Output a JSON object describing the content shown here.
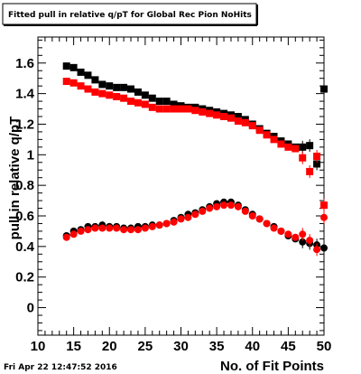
{
  "chart_data": {
    "type": "scatter",
    "title": "Fitted pull in relative q/pT  for Global Rec Pion NoHits",
    "xlabel": "No. of Fit Points",
    "ylabel": "pull in relative q/pT",
    "timestamp": "Fri Apr 22 12:47:52 2016",
    "xlim": [
      10,
      50
    ],
    "ylim": [
      -0.18,
      1.77
    ],
    "xticks": [
      10,
      15,
      20,
      25,
      30,
      35,
      40,
      45,
      50
    ],
    "yticks": [
      0,
      0.2,
      0.4,
      0.6,
      0.8,
      1,
      1.2,
      1.4,
      1.6
    ],
    "ytick_labels": [
      "0",
      "0.2",
      "0.4",
      "0.6",
      "0.8",
      "1",
      "1.2",
      "1.4",
      "1.6"
    ],
    "grid": false,
    "series": [
      {
        "marker": "square",
        "color": "#000000",
        "x": [
          14,
          15,
          16,
          17,
          18,
          19,
          20,
          21,
          22,
          23,
          24,
          25,
          26,
          27,
          28,
          29,
          30,
          31,
          32,
          33,
          34,
          35,
          36,
          37,
          38,
          39,
          40,
          41,
          42,
          43,
          44,
          45,
          46,
          47,
          48,
          49,
          50
        ],
        "y": [
          1.58,
          1.57,
          1.54,
          1.52,
          1.49,
          1.46,
          1.45,
          1.44,
          1.44,
          1.43,
          1.41,
          1.39,
          1.37,
          1.35,
          1.35,
          1.33,
          1.32,
          1.31,
          1.31,
          1.3,
          1.29,
          1.28,
          1.27,
          1.26,
          1.25,
          1.23,
          1.2,
          1.17,
          1.14,
          1.12,
          1.09,
          1.07,
          1.05,
          1.05,
          1.06,
          0.94,
          1.43
        ]
      },
      {
        "marker": "square",
        "color": "#ff0000",
        "x": [
          14,
          15,
          16,
          17,
          18,
          19,
          20,
          21,
          22,
          23,
          24,
          25,
          26,
          27,
          28,
          29,
          30,
          31,
          32,
          33,
          34,
          35,
          36,
          37,
          38,
          39,
          40,
          41,
          42,
          43,
          44,
          45,
          46,
          47,
          48,
          49,
          50
        ],
        "y": [
          1.48,
          1.47,
          1.45,
          1.43,
          1.41,
          1.4,
          1.39,
          1.38,
          1.37,
          1.35,
          1.34,
          1.33,
          1.31,
          1.3,
          1.3,
          1.3,
          1.3,
          1.3,
          1.29,
          1.28,
          1.27,
          1.26,
          1.25,
          1.24,
          1.22,
          1.21,
          1.19,
          1.16,
          1.13,
          1.1,
          1.07,
          1.05,
          1.04,
          0.98,
          0.89,
          0.99,
          0.67
        ]
      },
      {
        "marker": "circle",
        "color": "#000000",
        "x": [
          14,
          15,
          16,
          17,
          18,
          19,
          20,
          21,
          22,
          23,
          24,
          25,
          26,
          27,
          28,
          29,
          30,
          31,
          32,
          33,
          34,
          35,
          36,
          37,
          38,
          39,
          40,
          41,
          42,
          43,
          44,
          45,
          46,
          47,
          48,
          49,
          50
        ],
        "y": [
          0.47,
          0.5,
          0.51,
          0.53,
          0.53,
          0.54,
          0.53,
          0.53,
          0.52,
          0.52,
          0.53,
          0.53,
          0.54,
          0.54,
          0.55,
          0.57,
          0.59,
          0.61,
          0.62,
          0.64,
          0.66,
          0.68,
          0.69,
          0.69,
          0.67,
          0.64,
          0.61,
          0.58,
          0.55,
          0.53,
          0.5,
          0.47,
          0.45,
          0.43,
          0.42,
          0.41,
          0.39
        ]
      },
      {
        "marker": "circle",
        "color": "#ff0000",
        "x": [
          14,
          15,
          16,
          17,
          18,
          19,
          20,
          21,
          22,
          23,
          24,
          25,
          26,
          27,
          28,
          29,
          30,
          31,
          32,
          33,
          34,
          35,
          36,
          37,
          38,
          39,
          40,
          41,
          42,
          43,
          44,
          45,
          46,
          47,
          48,
          49,
          50
        ],
        "y": [
          0.46,
          0.48,
          0.5,
          0.51,
          0.52,
          0.52,
          0.52,
          0.52,
          0.51,
          0.51,
          0.51,
          0.52,
          0.53,
          0.54,
          0.55,
          0.56,
          0.58,
          0.59,
          0.61,
          0.63,
          0.65,
          0.66,
          0.67,
          0.67,
          0.66,
          0.63,
          0.6,
          0.58,
          0.55,
          0.52,
          0.5,
          0.48,
          0.46,
          0.48,
          0.44,
          0.38,
          0.59
        ]
      }
    ]
  }
}
